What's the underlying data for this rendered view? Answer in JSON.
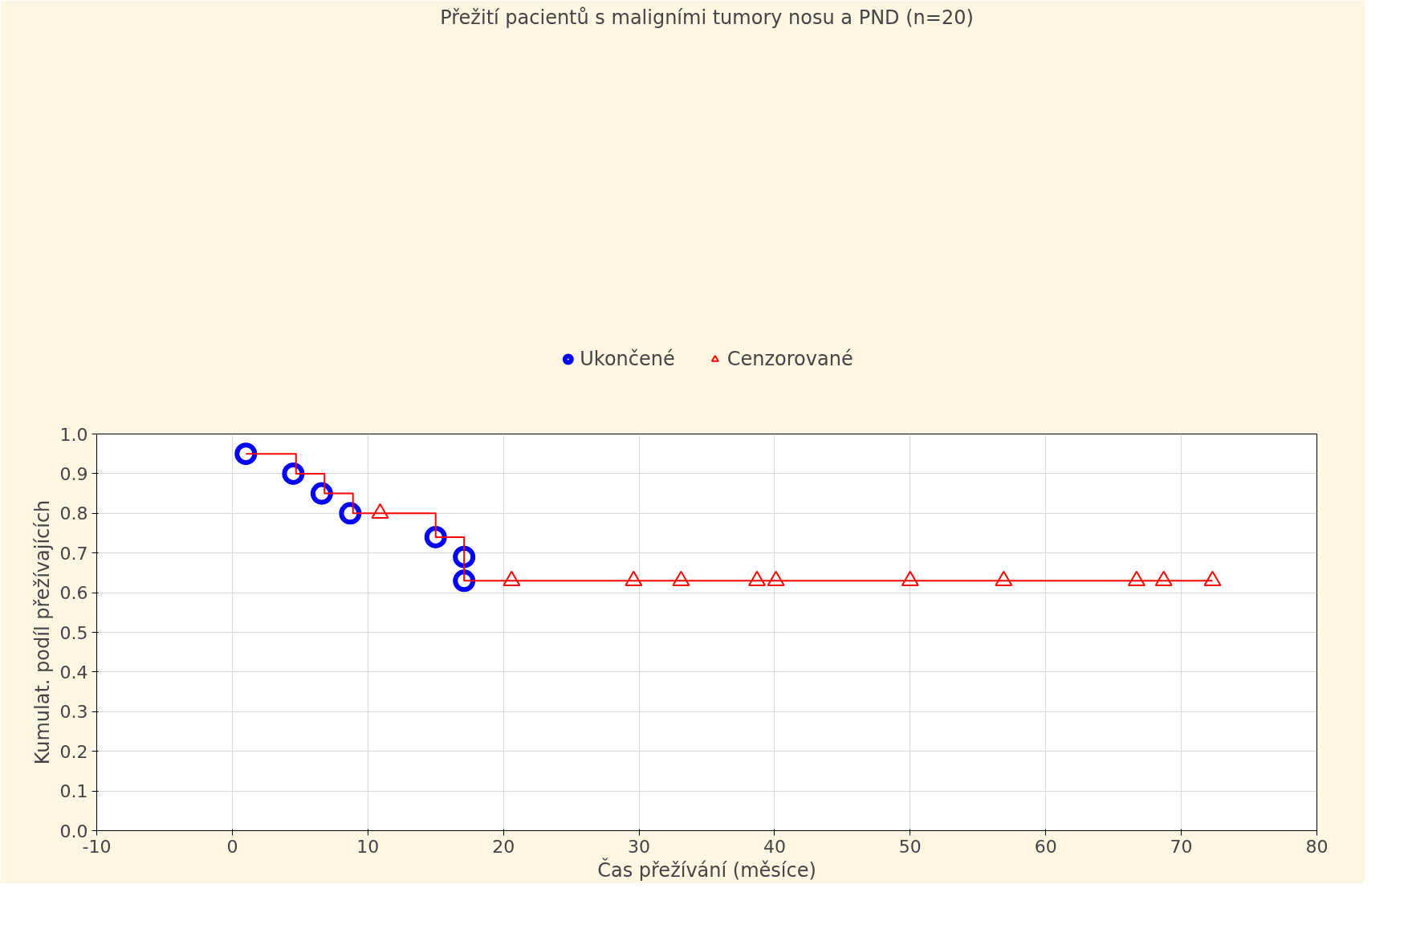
{
  "chart_data": {
    "type": "scatter",
    "title": "Přežití pacientů s maligními tumory nosu a PND (n=20)",
    "xlabel": "Čas přežívání (měsíce)",
    "ylabel": "Kumulat. podíl přežívajících",
    "series": [
      {
        "type": "step",
        "color": "#ff0000",
        "marker": "none",
        "line_style": "solid",
        "x": [
          1,
          4.7,
          6.8,
          8.9,
          15,
          17.1,
          17.1,
          72.3
        ],
        "values": [
          0.95,
          0.9,
          0.85,
          0.8,
          0.74,
          0.69,
          0.63,
          0.63
        ]
      },
      {
        "name": "Ukončené",
        "marker": "circle",
        "color": "#0000ff",
        "x": [
          1,
          4.5,
          6.6,
          8.7,
          15,
          17.1,
          17.1
        ],
        "values": [
          0.95,
          0.9,
          0.85,
          0.8,
          0.74,
          0.69,
          0.63
        ]
      },
      {
        "name": "Cenzorované",
        "marker": "triangle",
        "color": "#ff0000",
        "x": [
          10.9,
          20.6,
          29.6,
          33.1,
          38.7,
          40.1,
          50.0,
          56.9,
          66.7,
          68.7,
          72.3
        ],
        "values": [
          0.8,
          0.63,
          0.63,
          0.63,
          0.63,
          0.63,
          0.63,
          0.63,
          0.63,
          0.63,
          0.63
        ]
      }
    ],
    "xlim": [
      -10,
      80
    ],
    "xticks": [
      -10,
      0,
      10,
      20,
      30,
      40,
      50,
      60,
      70,
      80
    ],
    "ylim": [
      0,
      1
    ],
    "yticks": [
      {
        "value": 0,
        "label": "0.0"
      },
      0.1,
      0.2,
      0.3,
      0.4,
      0.5,
      0.6,
      0.7,
      0.8,
      0.9,
      {
        "value": 1,
        "label": "1.0"
      }
    ],
    "grid": true,
    "legend": "top"
  }
}
